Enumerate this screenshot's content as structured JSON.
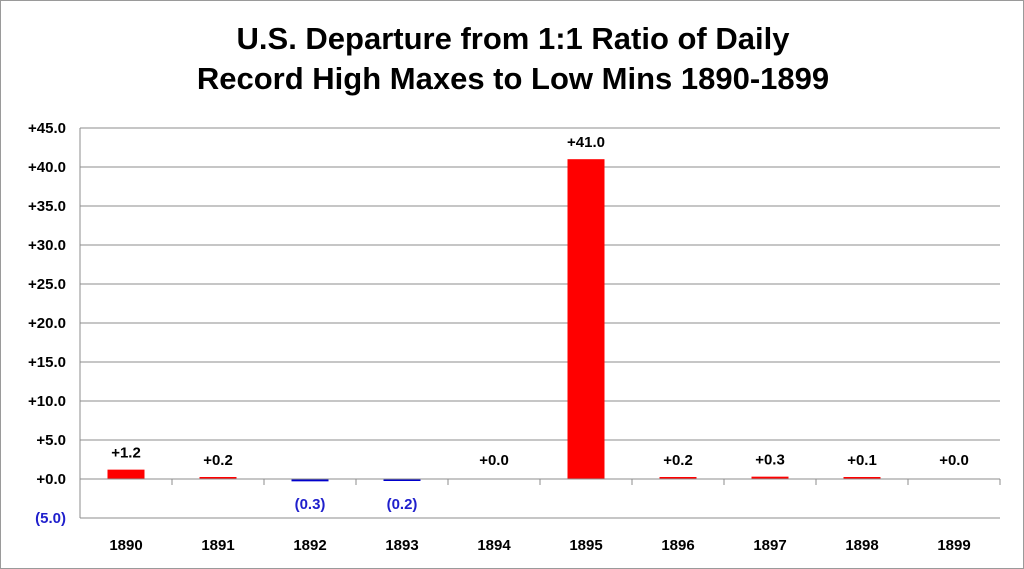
{
  "chart_data": {
    "type": "bar",
    "title_line1": "U.S. Departure from 1:1 Ratio of Daily",
    "title_line2": "Record High Maxes to Low Mins 1890-1899",
    "xlabel": "",
    "ylabel": "",
    "ylim": [
      -5,
      45
    ],
    "yticks": [
      -5,
      0,
      5,
      10,
      15,
      20,
      25,
      30,
      35,
      40,
      45
    ],
    "ytick_labels": [
      "(5.0)",
      "+0.0",
      "+5.0",
      "+10.0",
      "+15.0",
      "+20.0",
      "+25.0",
      "+30.0",
      "+35.0",
      "+40.0",
      "+45.0"
    ],
    "grid": true,
    "legend": "none",
    "categories": [
      "1890",
      "1891",
      "1892",
      "1893",
      "1894",
      "1895",
      "1896",
      "1897",
      "1898",
      "1899"
    ],
    "values": [
      1.2,
      0.2,
      -0.3,
      -0.2,
      0.0,
      41.0,
      0.2,
      0.3,
      0.1,
      0.0
    ],
    "data_labels": [
      "+1.2",
      "+0.2",
      "(0.3)",
      "(0.2)",
      "+0.0",
      "+41.0",
      "+0.2",
      "+0.3",
      "+0.1",
      "+0.0"
    ],
    "positive_color": "#ff0000",
    "negative_color": "#0000cc",
    "negative_label_color": "#1f1fcc",
    "grid_color": "#8c8c8c"
  }
}
